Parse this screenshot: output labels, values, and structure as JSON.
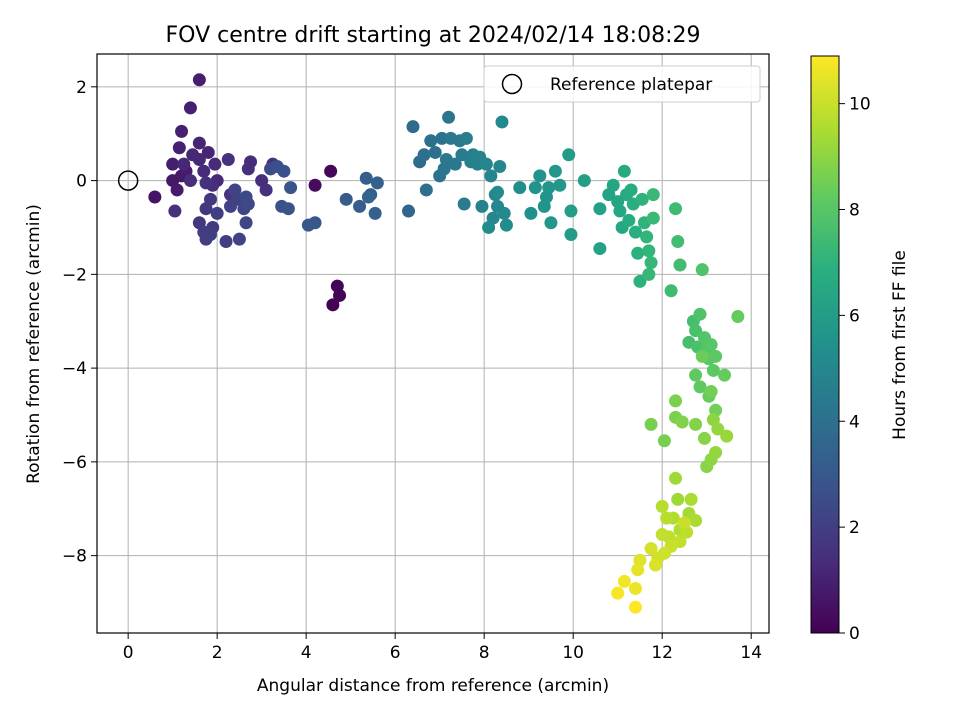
{
  "chart_data": {
    "type": "scatter",
    "title": "FOV centre drift starting at 2024/02/14 18:08:29",
    "xlabel": "Angular distance from reference (arcmin)",
    "ylabel": "Rotation from reference (arcmin)",
    "xlim": [
      -0.7,
      14.4
    ],
    "ylim": [
      -9.65,
      2.7
    ],
    "xticks": [
      0,
      2,
      4,
      6,
      8,
      10,
      12,
      14
    ],
    "yticks": [
      2,
      0,
      -2,
      -4,
      -6,
      -8
    ],
    "grid": true,
    "legend": {
      "placement": "top-right",
      "entries": [
        "Reference platepar"
      ]
    },
    "reference_point": {
      "x": 0,
      "y": 0
    },
    "colorbar": {
      "label": "Hours from first FF file",
      "range": [
        0,
        10.9
      ],
      "ticks": [
        0,
        2,
        4,
        6,
        8,
        10
      ],
      "colormap": "viridis"
    },
    "points": [
      [
        4.6,
        -2.65,
        0.0
      ],
      [
        4.75,
        -2.45,
        0.1
      ],
      [
        4.7,
        -2.25,
        0.1
      ],
      [
        4.55,
        0.2,
        0.2
      ],
      [
        4.2,
        -0.1,
        0.3
      ],
      [
        0.6,
        -0.35,
        0.6
      ],
      [
        1.0,
        0.0,
        0.7
      ],
      [
        1.1,
        -0.2,
        0.8
      ],
      [
        1.2,
        0.1,
        0.7
      ],
      [
        1.3,
        0.2,
        0.8
      ],
      [
        1.0,
        0.35,
        0.9
      ],
      [
        1.6,
        2.15,
        0.9
      ],
      [
        1.4,
        1.55,
        1.0
      ],
      [
        1.2,
        1.05,
        1.0
      ],
      [
        1.15,
        0.7,
        1.0
      ],
      [
        1.6,
        0.8,
        1.1
      ],
      [
        1.8,
        0.6,
        1.1
      ],
      [
        1.45,
        0.55,
        1.2
      ],
      [
        1.6,
        0.45,
        1.2
      ],
      [
        1.25,
        0.35,
        1.2
      ],
      [
        1.7,
        0.2,
        1.3
      ],
      [
        1.95,
        0.35,
        1.3
      ],
      [
        2.0,
        0.0,
        1.3
      ],
      [
        1.4,
        0.0,
        1.4
      ],
      [
        1.9,
        -0.1,
        1.4
      ],
      [
        1.05,
        -0.65,
        1.5
      ],
      [
        1.75,
        -0.05,
        1.5
      ],
      [
        2.3,
        -0.3,
        1.6
      ],
      [
        2.25,
        0.45,
        1.5
      ],
      [
        2.7,
        0.25,
        1.5
      ],
      [
        2.75,
        0.4,
        1.4
      ],
      [
        3.0,
        0.0,
        1.4
      ],
      [
        3.1,
        -0.2,
        1.5
      ],
      [
        3.25,
        0.35,
        1.6
      ],
      [
        1.6,
        -0.9,
        1.7
      ],
      [
        1.75,
        -0.6,
        1.7
      ],
      [
        1.85,
        -0.4,
        1.8
      ],
      [
        1.9,
        -1.0,
        1.8
      ],
      [
        1.7,
        -1.1,
        1.9
      ],
      [
        1.75,
        -1.25,
        1.9
      ],
      [
        1.85,
        -1.15,
        2.0
      ],
      [
        2.0,
        -0.7,
        2.0
      ],
      [
        2.2,
        -1.3,
        2.0
      ],
      [
        2.3,
        -0.55,
        2.1
      ],
      [
        2.45,
        -0.4,
        2.1
      ],
      [
        2.5,
        -1.25,
        2.2
      ],
      [
        2.4,
        -0.2,
        2.2
      ],
      [
        2.6,
        -0.6,
        2.3
      ],
      [
        2.65,
        -0.9,
        2.3
      ],
      [
        2.7,
        -0.5,
        2.4
      ],
      [
        2.65,
        -0.35,
        2.4
      ],
      [
        3.2,
        0.25,
        2.5
      ],
      [
        3.35,
        0.3,
        2.6
      ],
      [
        3.5,
        0.2,
        2.7
      ],
      [
        3.45,
        -0.55,
        2.7
      ],
      [
        3.6,
        -0.6,
        2.8
      ],
      [
        3.65,
        -0.15,
        2.8
      ],
      [
        4.05,
        -0.95,
        2.9
      ],
      [
        4.2,
        -0.9,
        3.0
      ],
      [
        4.9,
        -0.4,
        3.1
      ],
      [
        5.2,
        -0.55,
        3.2
      ],
      [
        5.35,
        0.05,
        3.3
      ],
      [
        5.45,
        -0.3,
        3.3
      ],
      [
        5.55,
        -0.7,
        3.4
      ],
      [
        5.6,
        -0.05,
        3.4
      ],
      [
        5.4,
        -0.35,
        3.5
      ],
      [
        6.3,
        -0.65,
        3.6
      ],
      [
        6.4,
        1.15,
        3.8
      ],
      [
        6.55,
        0.4,
        3.8
      ],
      [
        6.65,
        0.55,
        3.9
      ],
      [
        6.7,
        -0.2,
        3.9
      ],
      [
        6.8,
        0.85,
        4.0
      ],
      [
        6.9,
        0.6,
        4.0
      ],
      [
        7.0,
        0.1,
        4.1
      ],
      [
        7.05,
        0.9,
        4.1
      ],
      [
        7.1,
        0.25,
        4.2
      ],
      [
        7.2,
        1.35,
        4.2
      ],
      [
        7.15,
        0.45,
        4.3
      ],
      [
        7.25,
        0.9,
        4.3
      ],
      [
        7.35,
        0.35,
        4.4
      ],
      [
        7.45,
        0.85,
        4.4
      ],
      [
        7.5,
        0.55,
        4.5
      ],
      [
        7.55,
        -0.5,
        4.5
      ],
      [
        7.6,
        0.9,
        4.6
      ],
      [
        7.7,
        0.4,
        4.6
      ],
      [
        7.75,
        0.55,
        4.7
      ],
      [
        7.85,
        0.35,
        4.7
      ],
      [
        7.9,
        0.5,
        4.8
      ],
      [
        7.95,
        -0.55,
        4.8
      ],
      [
        8.05,
        0.35,
        4.9
      ],
      [
        8.15,
        0.1,
        4.9
      ],
      [
        8.25,
        -0.3,
        5.0
      ],
      [
        8.3,
        -0.55,
        5.0
      ],
      [
        8.2,
        -0.8,
        5.0
      ],
      [
        8.35,
        0.3,
        5.0
      ],
      [
        8.4,
        1.25,
        5.1
      ],
      [
        8.45,
        -0.7,
        5.1
      ],
      [
        8.5,
        -0.95,
        5.2
      ],
      [
        8.1,
        -1.0,
        5.2
      ],
      [
        8.3,
        -0.25,
        5.2
      ],
      [
        8.8,
        -0.15,
        5.3
      ],
      [
        9.05,
        -0.7,
        5.4
      ],
      [
        9.15,
        -0.15,
        5.5
      ],
      [
        9.25,
        0.1,
        5.5
      ],
      [
        9.35,
        -0.55,
        5.6
      ],
      [
        9.4,
        -0.35,
        5.6
      ],
      [
        9.5,
        -0.9,
        5.7
      ],
      [
        9.45,
        -0.15,
        5.7
      ],
      [
        9.6,
        0.2,
        5.8
      ],
      [
        9.7,
        -0.1,
        5.8
      ],
      [
        9.9,
        0.55,
        5.9
      ],
      [
        9.95,
        -1.15,
        5.9
      ],
      [
        9.95,
        -0.65,
        6.0
      ],
      [
        10.25,
        0.0,
        6.1
      ],
      [
        10.6,
        -0.6,
        6.2
      ],
      [
        10.6,
        -1.45,
        6.2
      ],
      [
        10.8,
        -0.3,
        6.3
      ],
      [
        10.9,
        -0.1,
        6.4
      ],
      [
        11.0,
        -0.45,
        6.4
      ],
      [
        11.05,
        -0.65,
        6.5
      ],
      [
        11.1,
        -1.0,
        6.5
      ],
      [
        11.15,
        0.2,
        6.6
      ],
      [
        11.2,
        -0.3,
        6.6
      ],
      [
        11.25,
        -0.85,
        6.7
      ],
      [
        11.3,
        -0.2,
        6.7
      ],
      [
        11.35,
        -0.5,
        6.8
      ],
      [
        11.4,
        -1.1,
        6.8
      ],
      [
        11.45,
        -1.55,
        6.9
      ],
      [
        11.5,
        -2.15,
        6.9
      ],
      [
        11.55,
        -0.4,
        7.0
      ],
      [
        11.6,
        -0.9,
        7.0
      ],
      [
        11.65,
        -1.2,
        7.1
      ],
      [
        11.7,
        -1.5,
        7.1
      ],
      [
        11.75,
        -1.75,
        7.2
      ],
      [
        11.7,
        -2.0,
        7.2
      ],
      [
        11.8,
        -0.8,
        7.3
      ],
      [
        11.8,
        -0.3,
        7.3
      ],
      [
        12.2,
        -2.35,
        7.4
      ],
      [
        12.3,
        -0.6,
        7.4
      ],
      [
        12.35,
        -1.3,
        7.5
      ],
      [
        12.4,
        -1.8,
        7.5
      ],
      [
        12.6,
        -3.45,
        7.6
      ],
      [
        12.7,
        -3.0,
        7.6
      ],
      [
        12.75,
        -3.2,
        7.7
      ],
      [
        12.8,
        -3.55,
        7.7
      ],
      [
        12.85,
        -2.85,
        7.8
      ],
      [
        12.9,
        -1.9,
        7.8
      ],
      [
        12.95,
        -3.35,
        7.9
      ],
      [
        13.0,
        -3.6,
        7.9
      ],
      [
        13.05,
        -3.8,
        8.0
      ],
      [
        13.1,
        -3.5,
        8.0
      ],
      [
        13.15,
        -4.05,
        8.1
      ],
      [
        13.2,
        -3.75,
        8.1
      ],
      [
        12.75,
        -4.15,
        8.2
      ],
      [
        12.85,
        -4.4,
        8.2
      ],
      [
        13.05,
        -4.6,
        8.3
      ],
      [
        13.4,
        -4.15,
        8.3
      ],
      [
        13.7,
        -2.9,
        8.3
      ],
      [
        12.9,
        -3.75,
        8.4
      ],
      [
        13.2,
        -4.9,
        8.5
      ],
      [
        13.1,
        -4.5,
        8.5
      ],
      [
        11.75,
        -5.2,
        8.6
      ],
      [
        12.05,
        -5.55,
        8.6
      ],
      [
        12.3,
        -4.7,
        8.7
      ],
      [
        12.3,
        -5.05,
        8.7
      ],
      [
        12.45,
        -5.15,
        8.8
      ],
      [
        12.75,
        -5.2,
        8.8
      ],
      [
        12.95,
        -5.5,
        8.9
      ],
      [
        13.0,
        -6.1,
        8.9
      ],
      [
        13.1,
        -5.95,
        9.0
      ],
      [
        13.15,
        -5.1,
        9.0
      ],
      [
        13.2,
        -5.8,
        9.1
      ],
      [
        13.25,
        -5.3,
        9.1
      ],
      [
        13.45,
        -5.45,
        9.2
      ],
      [
        12.3,
        -6.35,
        9.3
      ],
      [
        12.35,
        -6.8,
        9.3
      ],
      [
        12.6,
        -7.1,
        9.4
      ],
      [
        12.65,
        -6.8,
        9.5
      ],
      [
        12.75,
        -7.25,
        9.5
      ],
      [
        12.25,
        -7.2,
        9.6
      ],
      [
        12.4,
        -7.45,
        9.6
      ],
      [
        12.0,
        -6.95,
        9.7
      ],
      [
        12.1,
        -7.2,
        9.7
      ],
      [
        12.55,
        -7.5,
        9.8
      ],
      [
        12.15,
        -7.6,
        9.8
      ],
      [
        12.0,
        -7.55,
        9.9
      ],
      [
        12.4,
        -7.7,
        9.9
      ],
      [
        12.5,
        -7.3,
        10.0
      ],
      [
        12.2,
        -7.8,
        10.0
      ],
      [
        12.05,
        -7.95,
        10.1
      ],
      [
        11.9,
        -8.05,
        10.1
      ],
      [
        11.75,
        -7.85,
        10.2
      ],
      [
        11.85,
        -8.2,
        10.3
      ],
      [
        11.5,
        -8.1,
        10.4
      ],
      [
        11.45,
        -8.3,
        10.5
      ],
      [
        11.4,
        -8.7,
        10.6
      ],
      [
        11.15,
        -8.55,
        10.7
      ],
      [
        11.0,
        -8.8,
        10.8
      ],
      [
        11.4,
        -9.1,
        10.9
      ]
    ]
  }
}
